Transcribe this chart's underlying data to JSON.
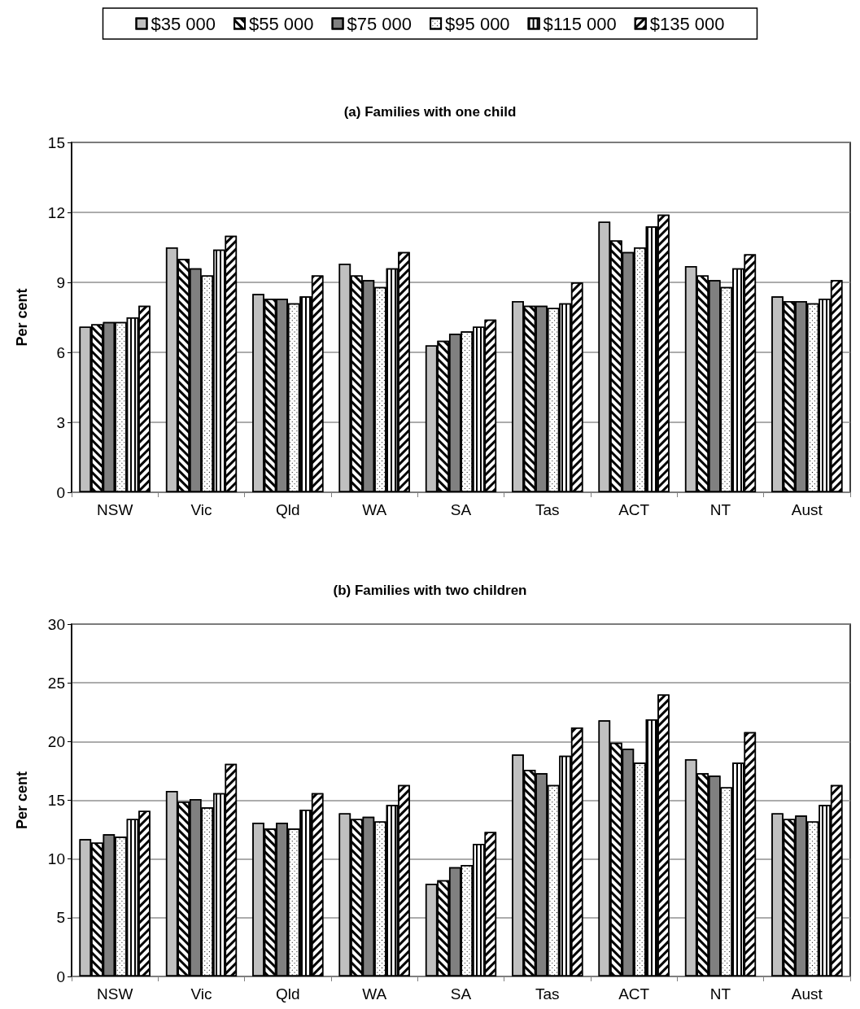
{
  "chart_data": [
    {
      "type": "bar",
      "title": "(a) Families with one child",
      "ylabel": "Per cent",
      "categories": [
        "NSW",
        "Vic",
        "Qld",
        "WA",
        "SA",
        "Tas",
        "ACT",
        "NT",
        "Aust"
      ],
      "ylim": [
        0,
        15
      ],
      "yticks": [
        0,
        3,
        6,
        9,
        12,
        15
      ],
      "grid": "y",
      "legend": "top",
      "series": [
        {
          "name": "$35 000",
          "color": "#c0c0c0",
          "values": [
            7.1,
            10.5,
            8.5,
            9.8,
            6.3,
            8.2,
            11.6,
            9.7,
            8.4
          ]
        },
        {
          "name": "$55 000",
          "color": "#ffffff",
          "values": [
            7.2,
            10.0,
            8.3,
            9.3,
            6.5,
            8.0,
            10.8,
            9.3,
            8.2
          ]
        },
        {
          "name": "$75 000",
          "color": "#808080",
          "values": [
            7.3,
            9.6,
            8.3,
            9.1,
            6.8,
            8.0,
            10.3,
            9.1,
            8.2
          ]
        },
        {
          "name": "$95 000",
          "color": "#ffffff",
          "values": [
            7.3,
            9.3,
            8.1,
            8.8,
            6.9,
            7.9,
            10.5,
            8.8,
            8.1
          ]
        },
        {
          "name": "$115 000",
          "color": "#ffffff",
          "values": [
            7.5,
            10.4,
            8.4,
            9.6,
            7.1,
            8.1,
            11.4,
            9.6,
            8.3
          ]
        },
        {
          "name": "$135 000",
          "color": "#ffffff",
          "values": [
            8.0,
            11.0,
            9.3,
            10.3,
            7.4,
            9.0,
            11.9,
            10.2,
            9.1
          ]
        }
      ]
    },
    {
      "type": "bar",
      "title": "(b) Families with two children",
      "ylabel": "Per cent",
      "categories": [
        "NSW",
        "Vic",
        "Qld",
        "WA",
        "SA",
        "Tas",
        "ACT",
        "NT",
        "Aust"
      ],
      "ylim": [
        0,
        30
      ],
      "yticks": [
        0,
        5,
        10,
        15,
        20,
        25,
        30
      ],
      "grid": "y",
      "series": [
        {
          "color": "#c0c0c0",
          "values": [
            11.7,
            15.8,
            13.1,
            13.9,
            7.9,
            18.9,
            21.8,
            18.5,
            13.9
          ]
        },
        {
          "color": "#ffffff",
          "values": [
            11.4,
            14.9,
            12.6,
            13.4,
            8.2,
            17.6,
            19.9,
            17.3,
            13.4
          ]
        },
        {
          "color": "#808080",
          "values": [
            12.1,
            15.1,
            13.1,
            13.6,
            9.3,
            17.3,
            19.4,
            17.1,
            13.7
          ]
        },
        {
          "color": "#ffffff",
          "values": [
            11.9,
            14.4,
            12.6,
            13.2,
            9.5,
            16.3,
            18.2,
            16.1,
            13.2
          ]
        },
        {
          "color": "#ffffff",
          "values": [
            13.4,
            15.6,
            14.2,
            14.6,
            11.3,
            18.8,
            21.9,
            18.2,
            14.6
          ]
        },
        {
          "color": "#ffffff",
          "values": [
            14.1,
            18.1,
            15.6,
            16.3,
            12.3,
            21.2,
            24.0,
            20.8,
            16.3
          ]
        }
      ]
    }
  ]
}
